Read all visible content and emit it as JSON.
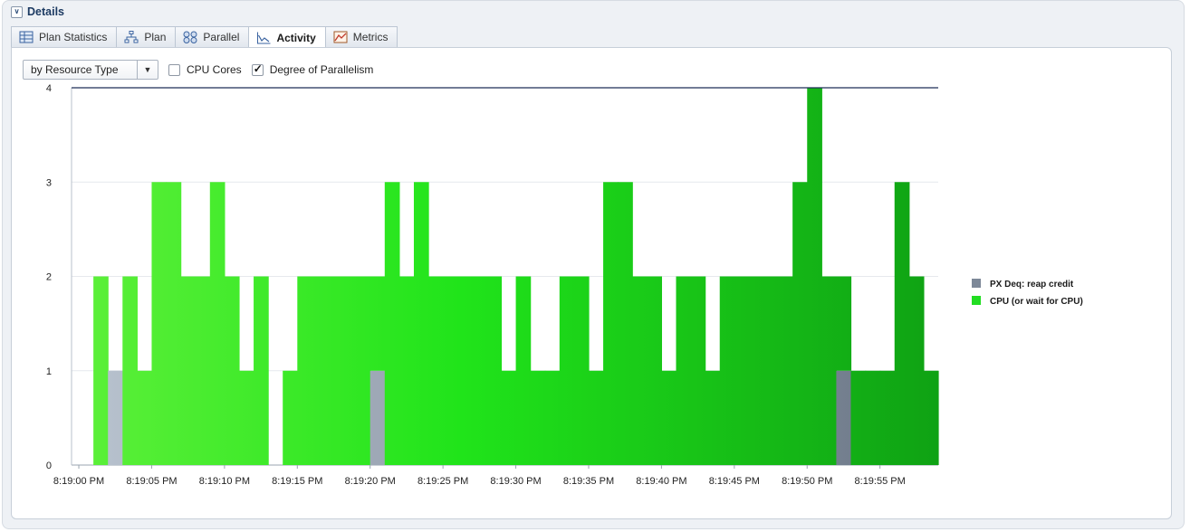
{
  "section": {
    "title": "Details",
    "toggle_glyph": "∨"
  },
  "tabs": [
    {
      "label": "Plan Statistics",
      "icon": "table-icon",
      "active": false
    },
    {
      "label": "Plan",
      "icon": "plan-tree-icon",
      "active": false
    },
    {
      "label": "Parallel",
      "icon": "parallel-icon",
      "active": false
    },
    {
      "label": "Activity",
      "icon": "activity-chart-icon",
      "active": true
    },
    {
      "label": "Metrics",
      "icon": "metrics-icon",
      "active": false
    }
  ],
  "controls": {
    "group_by": {
      "value": "by Resource Type",
      "arrow": "▼"
    },
    "cpu_cores": {
      "label": "CPU Cores",
      "checked": false
    },
    "degree_of_parallelism": {
      "label": "Degree of Parallelism",
      "checked": true
    }
  },
  "chart_data": {
    "type": "area",
    "stacked": true,
    "step": true,
    "title": "",
    "xlabel": "",
    "ylabel": "",
    "ylim": [
      0,
      4
    ],
    "yticks": [
      0,
      1,
      2,
      3,
      4
    ],
    "xtick_labels": [
      "8:19:00 PM",
      "8:19:05 PM",
      "8:19:10 PM",
      "8:19:15 PM",
      "8:19:20 PM",
      "8:19:25 PM",
      "8:19:30 PM",
      "8:19:35 PM",
      "8:19:40 PM",
      "8:19:45 PM",
      "8:19:50 PM",
      "8:19:55 PM"
    ],
    "x_start_label": "8:19:00 PM",
    "x_step_seconds": 1,
    "grid": true,
    "legend_position": "right",
    "dop_line": 4,
    "series": [
      {
        "name": "PX Deq: reap credit",
        "color": "#6e7c8c",
        "values": [
          0,
          0,
          1,
          0,
          0,
          0,
          0,
          0,
          0,
          0,
          0,
          0,
          0,
          0,
          0,
          0,
          0,
          0,
          0,
          0,
          1,
          0,
          0,
          0,
          0,
          0,
          0,
          0,
          0,
          0,
          0,
          0,
          0,
          0,
          0,
          0,
          0,
          0,
          0,
          0,
          0,
          0,
          0,
          0,
          0,
          0,
          0,
          0,
          0,
          0,
          0,
          0,
          1,
          0,
          0,
          0,
          0,
          0,
          0
        ]
      },
      {
        "name": "CPU (or wait for CPU)",
        "color": "#22dd22",
        "values": [
          0,
          2,
          0,
          2,
          1,
          3,
          3,
          2,
          2,
          3,
          2,
          1,
          2,
          0,
          1,
          2,
          2,
          2,
          2,
          2,
          1,
          3,
          2,
          3,
          2,
          2,
          2,
          2,
          2,
          1,
          2,
          1,
          1,
          2,
          2,
          1,
          3,
          3,
          2,
          2,
          1,
          2,
          2,
          1,
          2,
          2,
          2,
          2,
          2,
          3,
          4,
          2,
          1,
          1,
          1,
          1,
          3,
          2,
          1
        ]
      }
    ]
  }
}
